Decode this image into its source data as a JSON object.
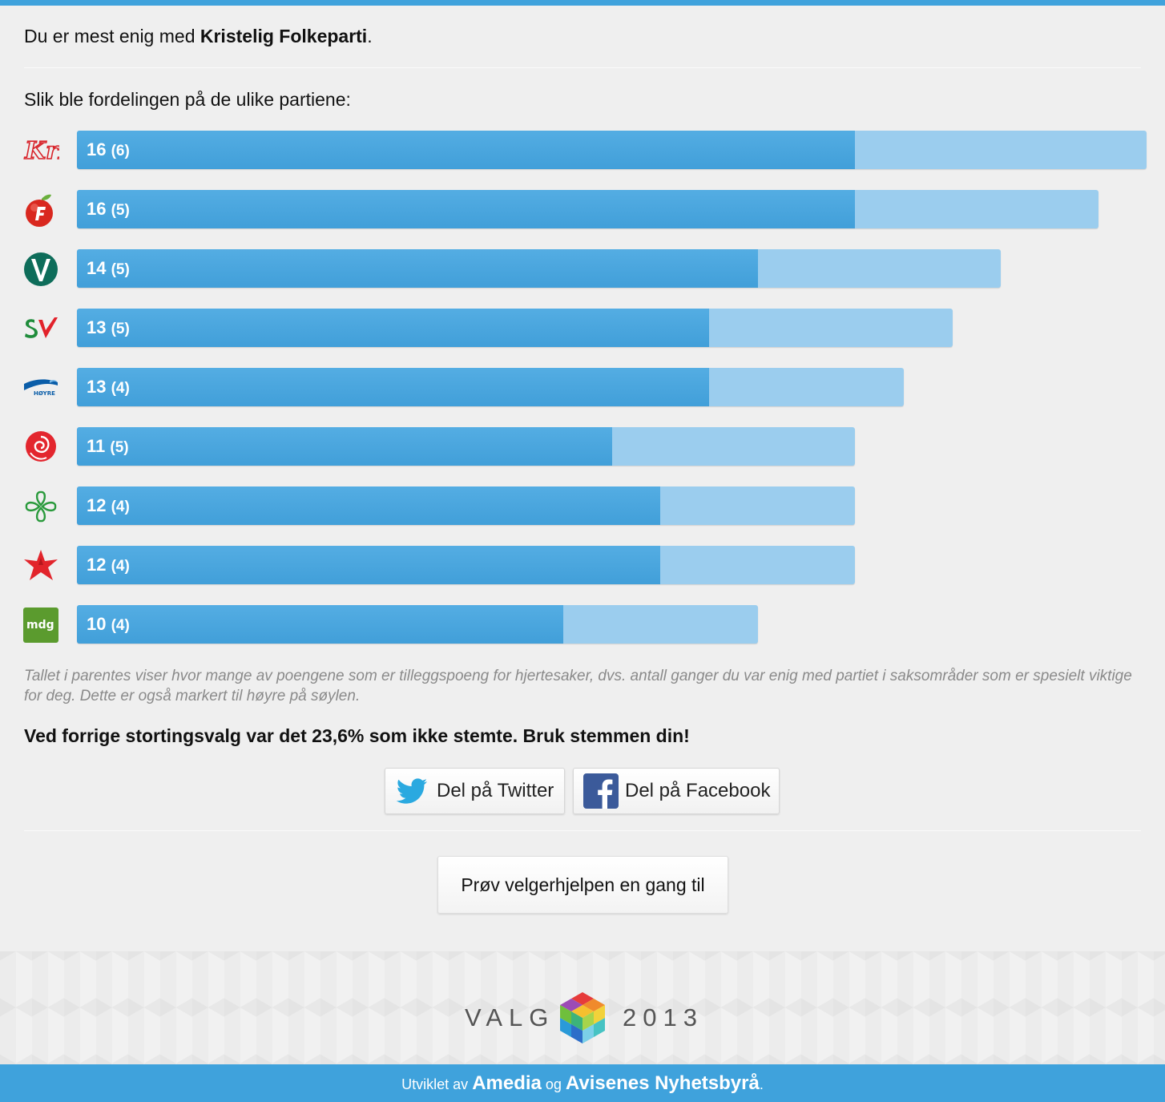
{
  "intro": {
    "prefix": "Du er mest enig med ",
    "party": "Kristelig Folkeparti",
    "suffix": "."
  },
  "subtitle": "Slik ble fordelingen på de ulike partiene:",
  "chart_data": {
    "type": "bar",
    "categories": [
      "KrF",
      "FrP",
      "V",
      "SV",
      "Høyre",
      "Ap",
      "Sp",
      "R",
      "mdg"
    ],
    "series": [
      {
        "name": "poeng",
        "values": [
          16,
          16,
          14,
          13,
          13,
          11,
          12,
          12,
          10
        ]
      },
      {
        "name": "hjertesaker",
        "values": [
          6,
          5,
          5,
          5,
          4,
          5,
          4,
          4,
          4
        ]
      }
    ]
  },
  "logos": {
    "krf": "KrF",
    "hoyre": "HØYRE",
    "mdg": "mdg"
  },
  "note": "Tallet i parentes viser hvor mange av poengene som er tilleggspoeng for hjertesaker, dvs. antall ganger du var enig med partiet i saksområder som er spesielt viktige for deg. Dette er også markert til høyre på søylen.",
  "turnout": "Ved forrige stortingsvalg var det 23,6% som ikke stemte. Bruk stemmen din!",
  "share": {
    "twitter_label": "Del på Twitter",
    "facebook_label": "Del på Facebook"
  },
  "retry_label": "Prøv velgerhjelpen en gang til",
  "brand": {
    "left": "VALG",
    "right": "2013"
  },
  "footer": {
    "prefix": "Utviklet av ",
    "company1": "Amedia",
    "middle": " og ",
    "company2": "Avisenes Nyhetsbyrå",
    "suffix": "."
  },
  "colors": {
    "accent": "#3fa2dc",
    "bar_main": "#4aa6de",
    "bar_extra": "#9bcdee"
  }
}
